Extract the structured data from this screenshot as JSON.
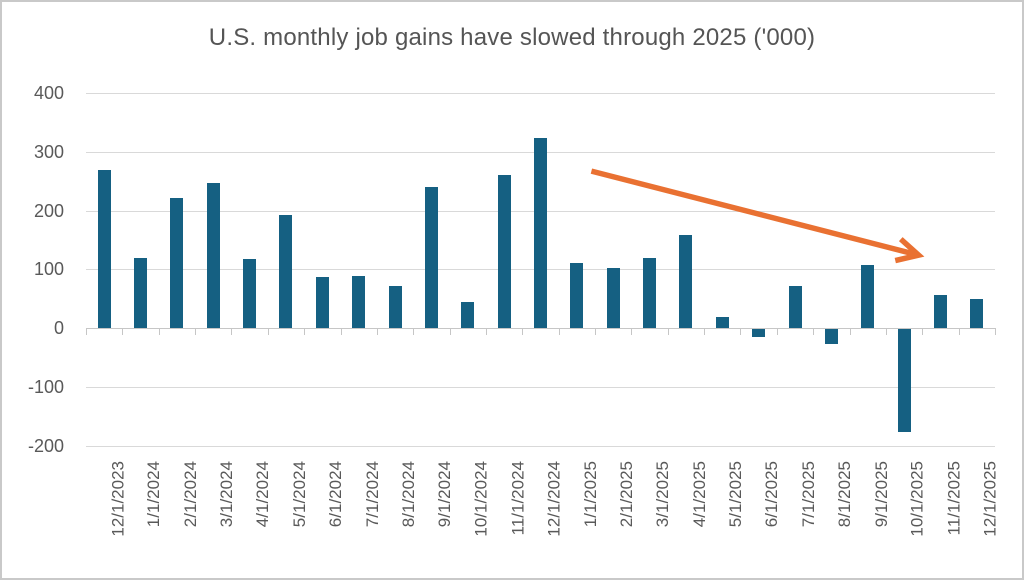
{
  "window": {
    "title": "U.S. monthly job gains have slowed through 2025 ('000)"
  },
  "chart_data": {
    "type": "bar",
    "title": "U.S. monthly job gains have slowed through 2025 ('000)",
    "xlabel": "",
    "ylabel": "",
    "categories": [
      "12/1/2023",
      "1/1/2024",
      "2/1/2024",
      "3/1/2024",
      "4/1/2024",
      "5/1/2024",
      "6/1/2024",
      "7/1/2024",
      "8/1/2024",
      "9/1/2024",
      "10/1/2024",
      "11/1/2024",
      "12/1/2024",
      "1/1/2025",
      "2/1/2025",
      "3/1/2025",
      "4/1/2025",
      "5/1/2025",
      "6/1/2025",
      "7/1/2025",
      "8/1/2025",
      "9/1/2025",
      "10/1/2025",
      "11/1/2025",
      "12/1/2025"
    ],
    "values": [
      269,
      119,
      222,
      246,
      118,
      193,
      87,
      88,
      71,
      240,
      44,
      261,
      323,
      111,
      102,
      120,
      158,
      19,
      -13,
      72,
      -26,
      108,
      -175,
      57,
      50
    ],
    "ylim": [
      -200,
      400
    ],
    "yticks": [
      400,
      300,
      200,
      100,
      0,
      -100,
      -200
    ],
    "grid": true,
    "legend": "none",
    "bar_color": "#156082",
    "annotations": [
      {
        "type": "arrow",
        "description": "downward trend arrow over 2025 bars",
        "color": "#E97132",
        "from_category_index": 13.4,
        "from_value": 267,
        "to_category_index": 22.4,
        "to_value": 124
      }
    ]
  },
  "colors": {
    "bar": "#156082",
    "arrow": "#E97132",
    "gridline": "#d9d9d9",
    "axis": "#c6c6c6",
    "text": "#595959",
    "title_text": "#555555",
    "frame_border": "#c9c9c9",
    "background": "#ffffff"
  }
}
